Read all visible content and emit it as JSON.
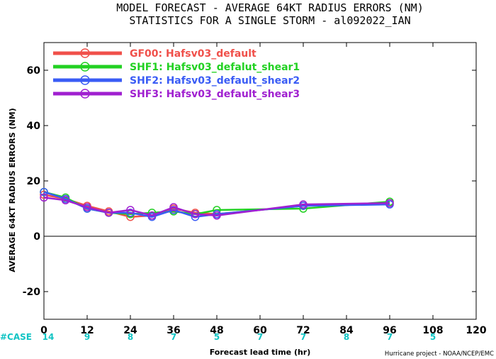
{
  "chart_data": {
    "type": "line",
    "title": "MODEL FORECAST - AVERAGE 64KT RADIUS ERRORS (NM)",
    "subtitle": "STATISTICS FOR A SINGLE STORM - al092022_IAN",
    "xlabel": "Forecast lead time (hr)",
    "ylabel": "AVERAGE 64KT RADIUS ERRORS (NM)",
    "xlim": [
      0,
      120
    ],
    "ylim": [
      -30,
      70
    ],
    "xticks": [
      0,
      12,
      24,
      36,
      48,
      60,
      72,
      84,
      96,
      108,
      120
    ],
    "yticks": [
      -20,
      0,
      20,
      40,
      60
    ],
    "legend_position": "top-left",
    "zero_line": true,
    "case_label": "#CASE",
    "case_counts": [
      {
        "x": 0,
        "n": "14"
      },
      {
        "x": 12,
        "n": "9"
      },
      {
        "x": 24,
        "n": "8"
      },
      {
        "x": 36,
        "n": "7"
      },
      {
        "x": 48,
        "n": "5"
      },
      {
        "x": 60,
        "n": "7"
      },
      {
        "x": 72,
        "n": "7"
      },
      {
        "x": 84,
        "n": "8"
      },
      {
        "x": 96,
        "n": "7"
      },
      {
        "x": 108,
        "n": "5"
      }
    ],
    "series": [
      {
        "name": "GF00: Hafsv03_default",
        "color": "#f0504a",
        "x": [
          0,
          6,
          12,
          18,
          24,
          30,
          36,
          42,
          48,
          72,
          96
        ],
        "y": [
          15,
          13.5,
          11,
          9,
          7,
          7.5,
          10,
          8.5,
          8,
          11,
          12
        ]
      },
      {
        "name": "SHF1: Hafsv03_defalut_shear1",
        "color": "#22d122",
        "x": [
          0,
          6,
          12,
          18,
          24,
          30,
          36,
          42,
          48,
          72,
          96
        ],
        "y": [
          16,
          14,
          10,
          8.5,
          8,
          8.5,
          9,
          8,
          9.5,
          10,
          12.5
        ]
      },
      {
        "name": "SHF2: Hafsv03_default_shear2",
        "color": "#3a5cf5",
        "x": [
          0,
          6,
          12,
          18,
          24,
          30,
          36,
          42,
          48,
          72,
          96
        ],
        "y": [
          16,
          13.5,
          10,
          8.5,
          8.5,
          7,
          9.5,
          7,
          8,
          11,
          11.5
        ]
      },
      {
        "name": "SHF3: Hafsv03_default_shear3",
        "color": "#a020d0",
        "x": [
          0,
          6,
          12,
          18,
          24,
          30,
          36,
          42,
          48,
          72,
          96
        ],
        "y": [
          14,
          13,
          10.5,
          8.5,
          9.5,
          7.5,
          10.5,
          8,
          7.5,
          11.5,
          12
        ]
      }
    ]
  },
  "colors": {
    "case_text": "#11c4c4",
    "axis": "#000000"
  },
  "credit": "Hurricane project - NOAA/NCEP/EMC"
}
